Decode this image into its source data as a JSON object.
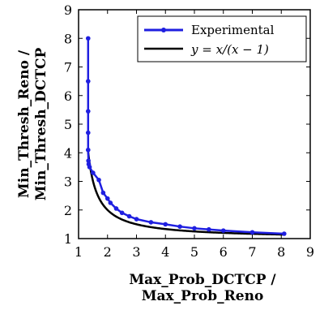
{
  "chart_data": {
    "type": "line",
    "xlabel": [
      "Max_Prob_DCTCP /",
      "Max_Prob_Reno"
    ],
    "ylabel": [
      "Min_Thresh_Reno /",
      "Min_Thresh_DCTCP"
    ],
    "xlim": [
      1,
      9
    ],
    "ylim": [
      1,
      9
    ],
    "x_ticks": [
      "1",
      "2",
      "3",
      "4",
      "5",
      "6",
      "7",
      "8",
      "9"
    ],
    "y_ticks": [
      "1",
      "2",
      "3",
      "4",
      "5",
      "6",
      "7",
      "8",
      "9"
    ],
    "legend_position": "top-right",
    "series": [
      {
        "name": "Experimental",
        "color": "#1f1fe0",
        "marker": "circle",
        "x": [
          1.33,
          1.33,
          1.33,
          1.33,
          1.33,
          1.34,
          1.35,
          1.38,
          1.5,
          1.7,
          1.85,
          2.0,
          2.1,
          2.3,
          2.5,
          2.75,
          3.0,
          3.5,
          4.0,
          4.5,
          5.0,
          5.5,
          6.0,
          7.0,
          8.1
        ],
        "y": [
          8.0,
          6.5,
          5.45,
          4.7,
          4.1,
          3.72,
          3.6,
          3.5,
          3.3,
          3.05,
          2.6,
          2.4,
          2.25,
          2.05,
          1.9,
          1.78,
          1.68,
          1.57,
          1.5,
          1.42,
          1.36,
          1.32,
          1.28,
          1.22,
          1.17
        ]
      },
      {
        "name": "y = x/(x − 1)",
        "color": "#000000",
        "formula": "x/(x-1)",
        "x_range": [
          1.33,
          8.1
        ]
      }
    ]
  }
}
